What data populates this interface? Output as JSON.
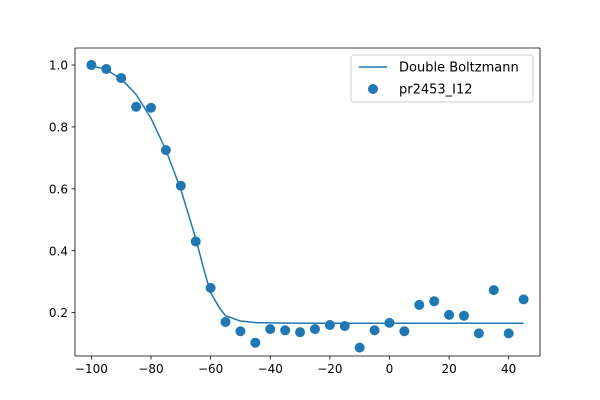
{
  "chart_data": {
    "type": "scatter",
    "title": "",
    "xlabel": "",
    "ylabel": "",
    "xlim": [
      -105.5,
      50.5
    ],
    "ylim": [
      0.06,
      1.055
    ],
    "xticks": [
      -100,
      -80,
      -60,
      -40,
      -20,
      0,
      20,
      40
    ],
    "xtick_labels": [
      "−100",
      "−80",
      "−60",
      "−40",
      "−20",
      "0",
      "20",
      "40"
    ],
    "yticks": [
      0.2,
      0.4,
      0.6,
      0.8,
      1.0
    ],
    "ytick_labels": [
      "0.2",
      "0.4",
      "0.6",
      "0.8",
      "1.0"
    ],
    "grid": false,
    "legend_position": "top-right",
    "series": [
      {
        "name": "Double Boltzmann",
        "kind": "line",
        "color": "#1f77b4",
        "points": [
          [
            -100,
            0.998
          ],
          [
            -95,
            0.985
          ],
          [
            -90,
            0.955
          ],
          [
            -85,
            0.905
          ],
          [
            -80,
            0.828
          ],
          [
            -75,
            0.725
          ],
          [
            -70,
            0.598
          ],
          [
            -65,
            0.44
          ],
          [
            -62,
            0.33
          ],
          [
            -60,
            0.265
          ],
          [
            -57,
            0.215
          ],
          [
            -55,
            0.19
          ],
          [
            -50,
            0.173
          ],
          [
            -45,
            0.168
          ],
          [
            -40,
            0.167
          ],
          [
            -30,
            0.166
          ],
          [
            -20,
            0.166
          ],
          [
            0,
            0.166
          ],
          [
            20,
            0.166
          ],
          [
            45,
            0.166
          ]
        ]
      },
      {
        "name": "pr2453_I12",
        "kind": "scatter",
        "color": "#1f77b4",
        "points": [
          [
            -100,
            1.0
          ],
          [
            -95,
            0.987
          ],
          [
            -90,
            0.958
          ],
          [
            -85,
            0.865
          ],
          [
            -80,
            0.862
          ],
          [
            -75,
            0.725
          ],
          [
            -70,
            0.61
          ],
          [
            -65,
            0.43
          ],
          [
            -60,
            0.28
          ],
          [
            -55,
            0.17
          ],
          [
            -50,
            0.14
          ],
          [
            -45,
            0.103
          ],
          [
            -40,
            0.147
          ],
          [
            -35,
            0.143
          ],
          [
            -30,
            0.137
          ],
          [
            -25,
            0.147
          ],
          [
            -20,
            0.16
          ],
          [
            -15,
            0.157
          ],
          [
            -10,
            0.087
          ],
          [
            -5,
            0.143
          ],
          [
            0,
            0.167
          ],
          [
            5,
            0.14
          ],
          [
            10,
            0.225
          ],
          [
            15,
            0.237
          ],
          [
            20,
            0.193
          ],
          [
            25,
            0.19
          ],
          [
            30,
            0.133
          ],
          [
            35,
            0.273
          ],
          [
            40,
            0.133
          ],
          [
            45,
            0.243
          ]
        ]
      }
    ]
  }
}
